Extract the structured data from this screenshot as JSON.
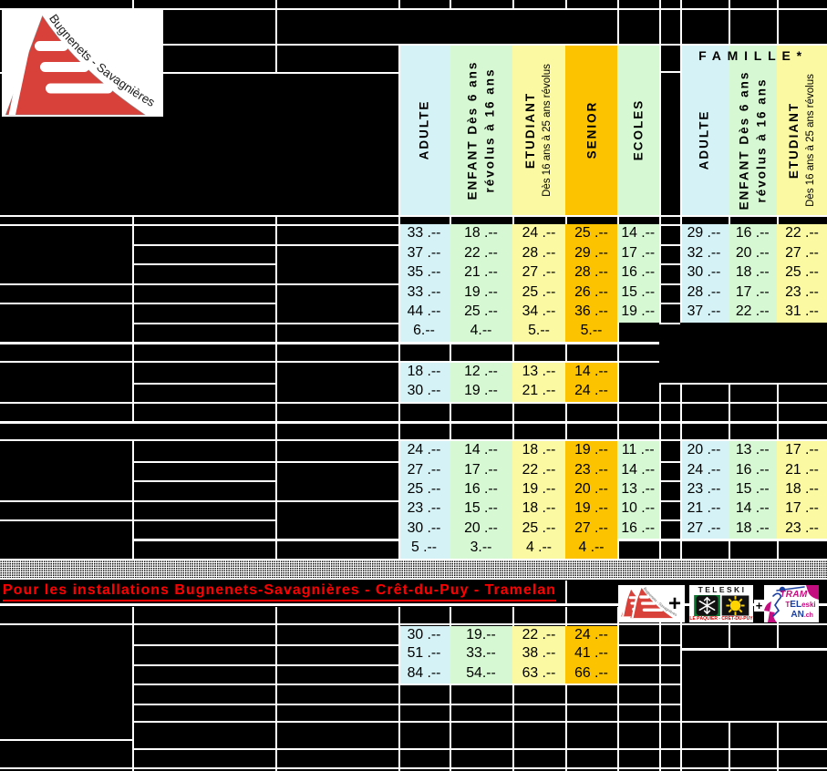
{
  "brand": {
    "logo_text": "Bugnenets - Savagnières"
  },
  "header": {
    "famille_title": "FAMILLE*",
    "columns": {
      "adulte": {
        "label": "ADULTE"
      },
      "enfant": {
        "label_line1": "ENFANT Dès 6 ans",
        "label_line2": "révolus à 16 ans"
      },
      "etudiant": {
        "label": "ETUDIANT",
        "sublabel": "Dès 16 ans à 25 ans révolus"
      },
      "senior": {
        "label": "SENIOR"
      },
      "ecoles": {
        "label": "ECOLES"
      },
      "famille_adulte": {
        "label": "ADULTE"
      },
      "famille_enfant": {
        "label_line1": "ENFANT Dès 6 ans",
        "label_line2": "révolus à 16 ans"
      },
      "famille_etudiant": {
        "label": "ETUDIANT",
        "sublabel": "Dès 16 ans à 25 ans révolus"
      }
    }
  },
  "section1": {
    "rows": [
      [
        "33 .--",
        "18 .--",
        "24 .--",
        "25 .--",
        "14 .--",
        "29 .--",
        "16 .--",
        "22 .--"
      ],
      [
        "37 .--",
        "22 .--",
        "28 .--",
        "29 .--",
        "17 .--",
        "32 .--",
        "20 .--",
        "27 .--"
      ],
      [
        "35 .--",
        "21 .--",
        "27 .--",
        "28 .--",
        "16 .--",
        "30 .--",
        "18 .--",
        "25 .--"
      ],
      [
        "33 .--",
        "19 .--",
        "25 .--",
        "26 .--",
        "15 .--",
        "28 .--",
        "17 .--",
        "23 .--"
      ],
      [
        "44 .--",
        "25 .--",
        "34 .--",
        "36 .--",
        "19 .--",
        "37 .--",
        "22 .--",
        "31 .--"
      ],
      [
        "6.--",
        "4.--",
        "5.--",
        "5.--",
        null,
        null,
        null,
        null
      ]
    ]
  },
  "section1b": {
    "rows": [
      [
        "18 .--",
        "12 .--",
        "13 .--",
        "14 .--"
      ],
      [
        "30 .--",
        "19 .--",
        "21 .--",
        "24 .--"
      ]
    ]
  },
  "section2": {
    "rows": [
      [
        "24 .--",
        "14 .--",
        "18 .--",
        "19 .--",
        "11 .--",
        "20 .--",
        "13 .--",
        "17 .--"
      ],
      [
        "27 .--",
        "17 .--",
        "22 .--",
        "23 .--",
        "14 .--",
        "24 .--",
        "16 .--",
        "21 .--"
      ],
      [
        "25 .--",
        "16 .--",
        "19 .--",
        "20 .--",
        "13 .--",
        "23 .--",
        "15 .--",
        "18 .--"
      ],
      [
        "23 .--",
        "15 .--",
        "18 .--",
        "19 .--",
        "10 .--",
        "21 .--",
        "14 .--",
        "17 .--"
      ],
      [
        "30 .--",
        "20 .--",
        "25 .--",
        "27 .--",
        "16 .--",
        "27 .--",
        "18 .--",
        "23 .--"
      ],
      [
        "5 .--",
        "3.--",
        "4 .--",
        "4 .--",
        null,
        null,
        null,
        null
      ]
    ]
  },
  "banner": {
    "text": "Pour les installations Bugnenets-Savagnières - Crêt-du-Puy - Tramelan"
  },
  "section3": {
    "rows": [
      [
        "30 .--",
        "19.--",
        "22 .--",
        "24 .--"
      ],
      [
        "51 .--",
        "33.--",
        "38 .--",
        "41 .--"
      ],
      [
        "84 .--",
        "54.--",
        "63 .--",
        "66 .--"
      ]
    ]
  },
  "logos": {
    "plus1": "+",
    "plus2": "+",
    "teleski": {
      "title": "TELESKI",
      "caption": "LE PÂQUIER - CRÊT-DU-PUY"
    },
    "tram": {
      "line1": "TRAM",
      "line2_t": "T",
      "line2_el": "EL",
      "line2_eski": "eski",
      "line3_an": "AN",
      "line3_ch": ".ch"
    }
  },
  "colors": {
    "cyan": "#d5f3f7",
    "green": "#d6f8d2",
    "yellow": "#fbf9a2",
    "orange": "#fcc301",
    "logo_red": "#d8403a",
    "banner_red": "#fe0000"
  }
}
